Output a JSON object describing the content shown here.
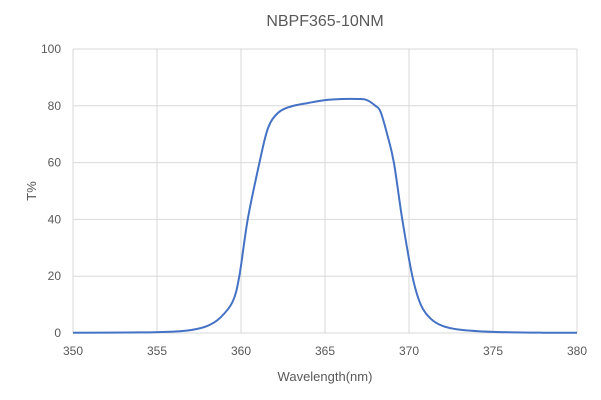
{
  "chart_data": {
    "type": "line",
    "title": "NBPF365-10NM",
    "xlabel": "Wavelength(nm)",
    "ylabel": "T%",
    "xlim": [
      350,
      380
    ],
    "ylim": [
      0,
      100
    ],
    "xticks": [
      350,
      355,
      360,
      365,
      370,
      375,
      380
    ],
    "yticks": [
      0,
      20,
      40,
      60,
      80,
      100
    ],
    "grid": true,
    "line_color": "#4472C4",
    "series": [
      {
        "x": [
          350,
          354,
          356,
          357,
          358,
          358.75,
          359.5,
          359.9,
          360.4,
          361.1,
          361.6,
          362.2,
          363,
          364,
          365,
          366,
          367,
          367.5,
          368,
          368.3,
          368.7,
          369.1,
          369.6,
          370.2,
          370.7,
          371.3,
          372,
          373,
          375,
          378,
          380
        ],
        "y": [
          0.1,
          0.2,
          0.5,
          1,
          2.5,
          5.3,
          11,
          20,
          40,
          60,
          72,
          77.5,
          79.8,
          81,
          82,
          82.4,
          82.4,
          82,
          80,
          78,
          70,
          60,
          40,
          20,
          10,
          5,
          2.5,
          1.2,
          0.4,
          0.1,
          0.1
        ]
      }
    ]
  }
}
